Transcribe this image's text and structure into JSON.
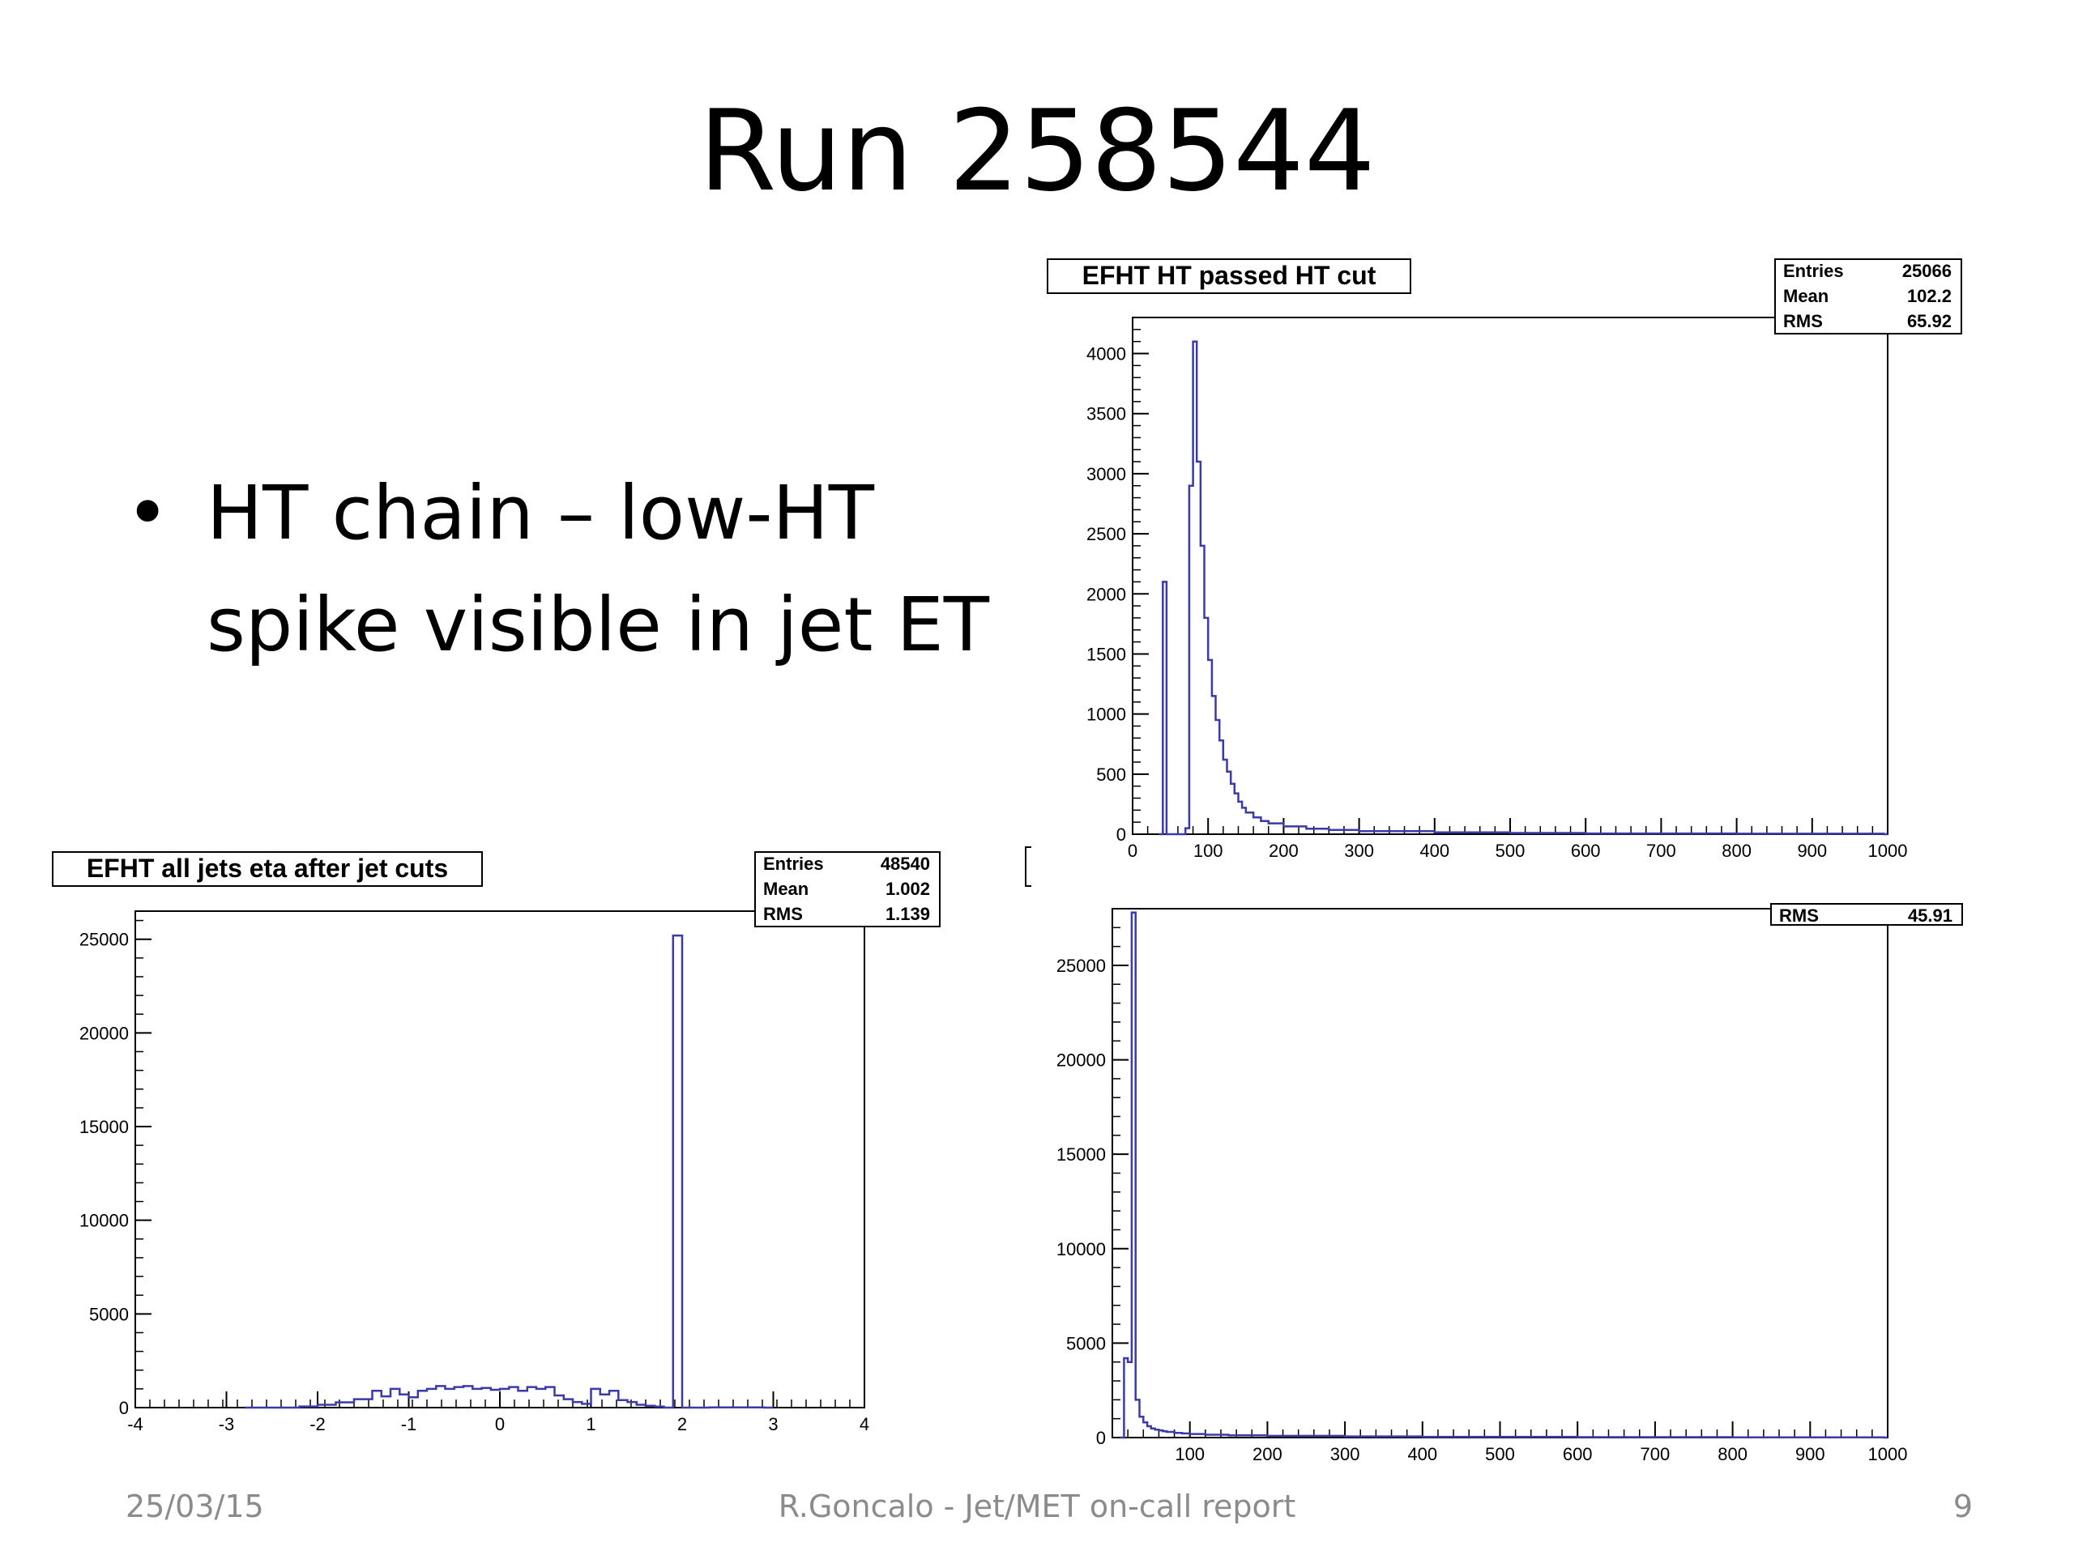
{
  "slide": {
    "title": "Run 258544",
    "bullet": [
      "HT chain – low-HT",
      "spike visible in jet ET"
    ],
    "footer_date": "25/03/15",
    "footer_center": "R.Goncalo - Jet/MET on-call report",
    "footer_page": "9"
  },
  "colors": {
    "histogram_line": "#3a3aa8",
    "axis": "#000000"
  },
  "chart_data": [
    {
      "id": "ht",
      "type": "histogram",
      "title": "EFHT HT passed HT cut",
      "stats": [
        [
          "Entries",
          "25066"
        ],
        [
          "Mean",
          "102.2"
        ],
        [
          "RMS",
          "65.92"
        ]
      ],
      "xlim": [
        0,
        1000
      ],
      "ylim": [
        0,
        4300
      ],
      "xticks": [
        0,
        100,
        200,
        300,
        400,
        500,
        600,
        700,
        800,
        900,
        1000
      ],
      "yticks": [
        0,
        500,
        1000,
        1500,
        2000,
        2500,
        3000,
        3500,
        4000
      ],
      "bin_width": 5,
      "points": [
        [
          35,
          0
        ],
        [
          40,
          2100
        ],
        [
          45,
          0
        ],
        [
          70,
          50
        ],
        [
          75,
          2900
        ],
        [
          80,
          4100
        ],
        [
          85,
          3100
        ],
        [
          90,
          2400
        ],
        [
          95,
          1800
        ],
        [
          100,
          1450
        ],
        [
          105,
          1150
        ],
        [
          110,
          950
        ],
        [
          115,
          780
        ],
        [
          120,
          620
        ],
        [
          125,
          520
        ],
        [
          130,
          420
        ],
        [
          135,
          340
        ],
        [
          140,
          270
        ],
        [
          145,
          220
        ],
        [
          150,
          180
        ],
        [
          160,
          140
        ],
        [
          170,
          110
        ],
        [
          180,
          90
        ],
        [
          200,
          65
        ],
        [
          230,
          45
        ],
        [
          260,
          35
        ],
        [
          300,
          25
        ],
        [
          400,
          15
        ],
        [
          500,
          10
        ],
        [
          600,
          6
        ],
        [
          800,
          4
        ],
        [
          995,
          0
        ]
      ]
    },
    {
      "id": "eta",
      "type": "histogram",
      "title": "EFHT all jets eta after jet cuts",
      "stats": [
        [
          "Entries",
          "48540"
        ],
        [
          "Mean",
          "1.002"
        ],
        [
          "RMS",
          "1.139"
        ]
      ],
      "xlim": [
        -4,
        4
      ],
      "ylim": [
        0,
        26500
      ],
      "xticks": [
        -4,
        -3,
        -2,
        -1,
        0,
        1,
        2,
        3,
        4
      ],
      "yticks": [
        0,
        5000,
        10000,
        15000,
        20000,
        25000
      ],
      "bin_width": 0.1,
      "points": [
        [
          -2.8,
          0
        ],
        [
          -2.2,
          60
        ],
        [
          -2.0,
          150
        ],
        [
          -1.8,
          280
        ],
        [
          -1.6,
          450
        ],
        [
          -1.4,
          900
        ],
        [
          -1.3,
          600
        ],
        [
          -1.2,
          1000
        ],
        [
          -1.1,
          700
        ],
        [
          -1.0,
          550
        ],
        [
          -0.9,
          900
        ],
        [
          -0.8,
          1000
        ],
        [
          -0.7,
          1150
        ],
        [
          -0.6,
          1000
        ],
        [
          -0.5,
          1100
        ],
        [
          -0.4,
          1150
        ],
        [
          -0.3,
          1000
        ],
        [
          -0.2,
          1050
        ],
        [
          -0.1,
          950
        ],
        [
          0.0,
          1000
        ],
        [
          0.1,
          1100
        ],
        [
          0.2,
          900
        ],
        [
          0.3,
          1100
        ],
        [
          0.4,
          1000
        ],
        [
          0.5,
          1100
        ],
        [
          0.6,
          650
        ],
        [
          0.7,
          450
        ],
        [
          0.8,
          300
        ],
        [
          0.9,
          200
        ],
        [
          1.0,
          1000
        ],
        [
          1.1,
          700
        ],
        [
          1.2,
          900
        ],
        [
          1.3,
          400
        ],
        [
          1.4,
          300
        ],
        [
          1.5,
          150
        ],
        [
          1.6,
          100
        ],
        [
          1.7,
          50
        ],
        [
          1.8,
          0
        ],
        [
          1.9,
          25200
        ],
        [
          2.0,
          0
        ],
        [
          2.3,
          10
        ],
        [
          2.9,
          0
        ]
      ]
    },
    {
      "id": "jetet",
      "type": "histogram",
      "title": "",
      "stats": [
        [
          "RMS",
          "45.91"
        ]
      ],
      "xlim": [
        0,
        1000
      ],
      "ylim": [
        0,
        28000
      ],
      "xticks": [
        100,
        200,
        300,
        400,
        500,
        600,
        700,
        800,
        900,
        1000
      ],
      "yticks": [
        0,
        5000,
        10000,
        15000,
        20000,
        25000
      ],
      "bin_width": 5,
      "points": [
        [
          10,
          0
        ],
        [
          15,
          4200
        ],
        [
          20,
          4000
        ],
        [
          25,
          27800
        ],
        [
          30,
          2000
        ],
        [
          35,
          1100
        ],
        [
          40,
          800
        ],
        [
          45,
          600
        ],
        [
          50,
          480
        ],
        [
          55,
          420
        ],
        [
          60,
          380
        ],
        [
          65,
          340
        ],
        [
          70,
          300
        ],
        [
          80,
          250
        ],
        [
          90,
          220
        ],
        [
          100,
          190
        ],
        [
          120,
          150
        ],
        [
          150,
          120
        ],
        [
          200,
          90
        ],
        [
          300,
          60
        ],
        [
          400,
          40
        ],
        [
          600,
          20
        ],
        [
          800,
          10
        ],
        [
          995,
          0
        ]
      ]
    }
  ]
}
